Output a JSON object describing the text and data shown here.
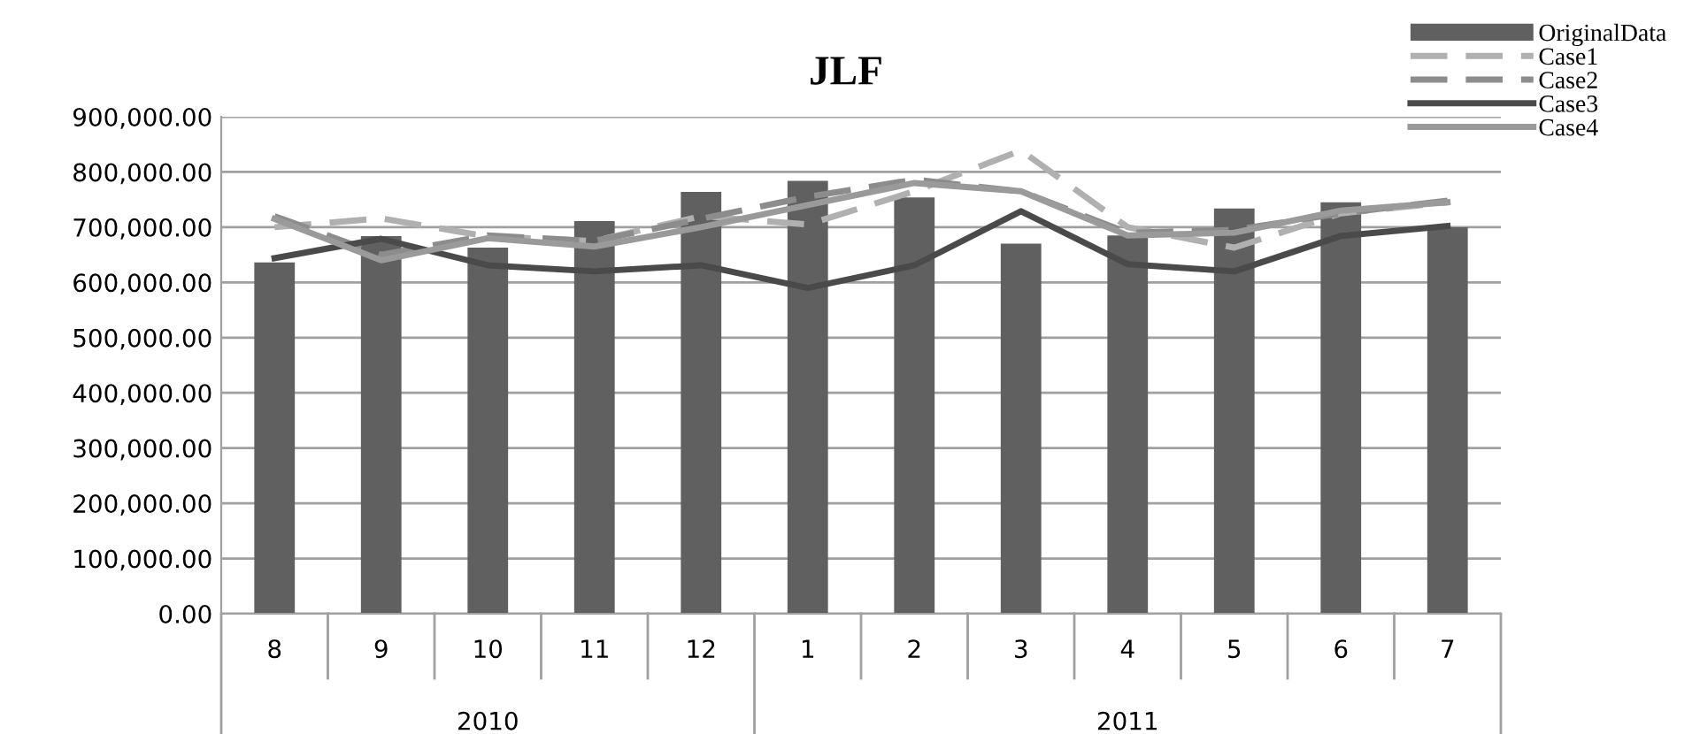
{
  "chart_data": {
    "type": "bar",
    "title": "JLF",
    "categories": [
      "8",
      "9",
      "10",
      "11",
      "12",
      "1",
      "2",
      "3",
      "4",
      "5",
      "6",
      "7"
    ],
    "series": [
      {
        "name": "OriginalData",
        "color": "#606060",
        "values": [
          636000,
          684000,
          663000,
          711000,
          764000,
          784000,
          754000,
          670000,
          685000,
          734000,
          745000,
          700000
        ]
      },
      {
        "name": "Case1",
        "type": "line",
        "color": "#b0b0b0",
        "line_style": "dashed",
        "values": [
          700000,
          716000,
          683000,
          675000,
          720000,
          705000,
          765000,
          839000,
          700000,
          663000,
          725000,
          745000
        ]
      },
      {
        "name": "Case2",
        "type": "line",
        "color": "#8c8c8c",
        "line_style": "dashed",
        "values": [
          720000,
          650000,
          685000,
          675000,
          715000,
          755000,
          786000,
          765000,
          690000,
          695000,
          725000,
          748000
        ]
      },
      {
        "name": "Case3",
        "type": "line",
        "color": "#4a4a4a",
        "line_style": "solid",
        "values": [
          644000,
          679000,
          631000,
          620000,
          631000,
          590000,
          631000,
          729000,
          633000,
          620000,
          684000,
          702000
        ]
      },
      {
        "name": "Case4",
        "type": "line",
        "color": "#9a9a9a",
        "line_style": "solid",
        "values": [
          715000,
          640000,
          680000,
          665000,
          700000,
          740000,
          780000,
          765000,
          685000,
          690000,
          730000,
          745000
        ]
      }
    ],
    "ylim": [
      0,
      900000
    ],
    "yticks": [
      {
        "value": 0,
        "label": "0.00"
      },
      {
        "value": 100000,
        "label": "100,000.00"
      },
      {
        "value": 200000,
        "label": "200,000.00"
      },
      {
        "value": 300000,
        "label": "300,000.00"
      },
      {
        "value": 400000,
        "label": "400,000.00"
      },
      {
        "value": 500000,
        "label": "500,000.00"
      },
      {
        "value": 600000,
        "label": "600,000.00"
      },
      {
        "value": 700000,
        "label": "700,000.00"
      },
      {
        "value": 800000,
        "label": "800,000.00"
      },
      {
        "value": 900000,
        "label": "900,000.00"
      }
    ],
    "grid": "y",
    "legend": "top right",
    "annotations": [
      "2010",
      "2011"
    ]
  }
}
